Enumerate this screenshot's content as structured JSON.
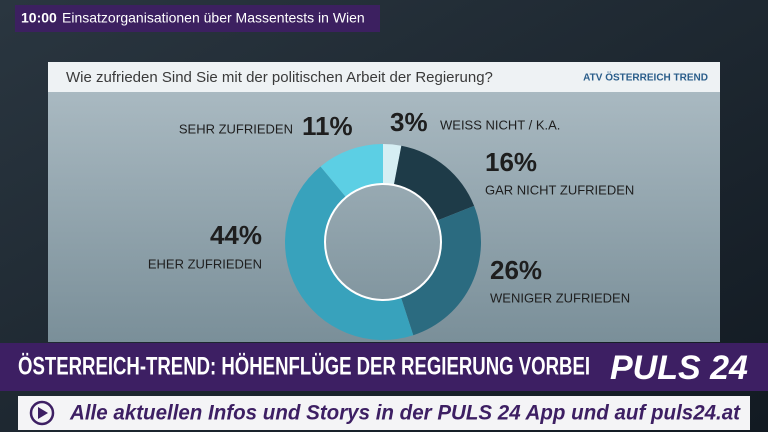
{
  "ticker": {
    "time": "10:00",
    "text": "Einsatzorganisationen über Massentests in Wien"
  },
  "chart_data": {
    "type": "donut",
    "title": "Wie zufrieden Sind Sie mit der politischen Arbeit der Regierung?",
    "source": "ATV ÖSTERREICH TREND",
    "categories": [
      "WEISS NICHT / K.A.",
      "GAR NICHT ZUFRIEDEN",
      "WENIGER ZUFRIEDEN",
      "EHER ZUFRIEDEN",
      "SEHR ZUFRIEDEN"
    ],
    "values": [
      3,
      16,
      26,
      44,
      11
    ],
    "value_labels": [
      "3%",
      "16%",
      "26%",
      "44%",
      "11%"
    ],
    "colors": [
      "#d6eef3",
      "#1e3b48",
      "#2b6b80",
      "#38a2bc",
      "#5ccfe4"
    ]
  },
  "banner": {
    "headline": "ÖSTERREICH-TREND: HÖHENFLÜGE DER REGIERUNG VORBEI",
    "logo": "PULS 24",
    "crawl": "Alle aktuellen Infos und Storys in der PULS 24 App und auf puls24.at"
  }
}
